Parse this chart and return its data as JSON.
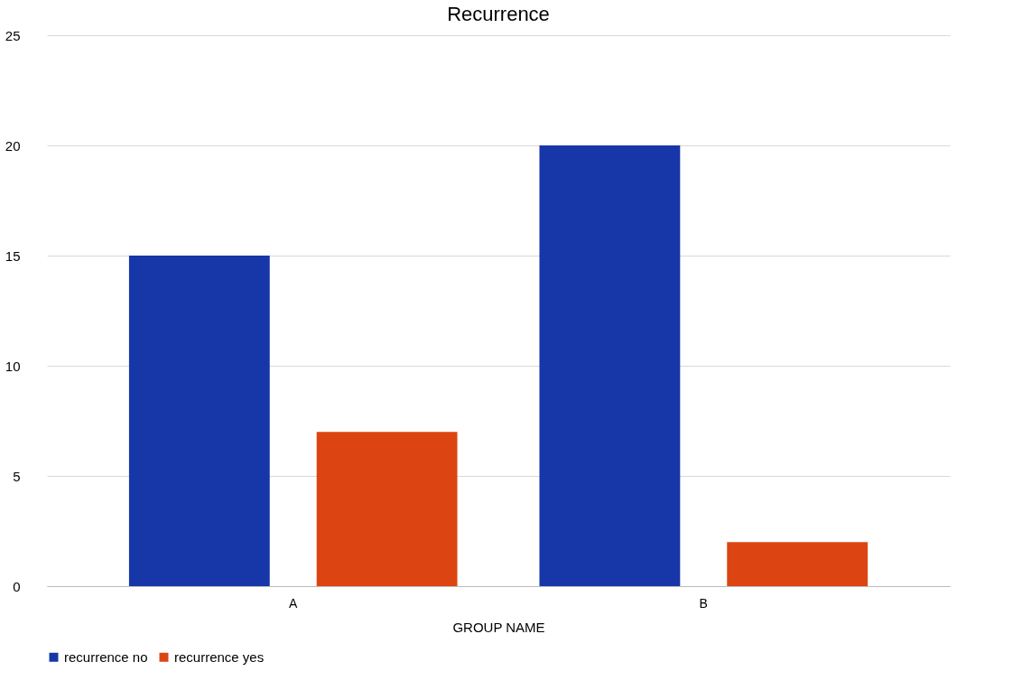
{
  "chart_data": {
    "type": "bar",
    "title": "Recurrence",
    "xlabel": "GROUP NAME",
    "categories": [
      "A",
      "B"
    ],
    "series": [
      {
        "name": "recurrence no",
        "color": "#1736a8",
        "values": [
          15,
          20
        ]
      },
      {
        "name": "recurrence yes",
        "color": "#dc4511",
        "values": [
          7,
          2
        ]
      }
    ],
    "ylim": [
      0,
      25
    ],
    "yticks": [
      0,
      5,
      10,
      15,
      20,
      25
    ],
    "grid": "y",
    "legend": "bottom"
  }
}
